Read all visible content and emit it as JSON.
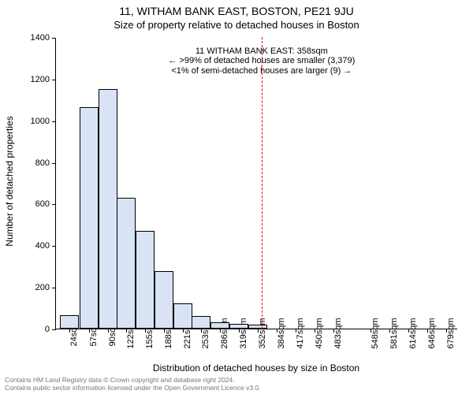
{
  "title_line1": "11, WITHAM BANK EAST, BOSTON, PE21 9JU",
  "title_line2": "Size of property relative to detached houses in Boston",
  "ylabel": "Number of detached properties",
  "xlabel": "Distribution of detached houses by size in Boston",
  "footer_line1": "Contains HM Land Registry data © Crown copyright and database right 2024.",
  "footer_line2": "Contains public sector information licensed under the Open Government Licence v3.0.",
  "chart": {
    "type": "histogram",
    "background_color": "#ffffff",
    "bar_fill": "#d9e3f5",
    "bar_border": "#000000",
    "axis_color": "#000000",
    "marker_color": "#ff0000",
    "marker_dash": "3,3",
    "xlim": [
      0,
      700
    ],
    "ylim": [
      0,
      1400
    ],
    "yticks": [
      0,
      200,
      400,
      600,
      800,
      1000,
      1200,
      1400
    ],
    "xtick_labels": [
      "24sqm",
      "57sqm",
      "90sqm",
      "122sqm",
      "155sqm",
      "188sqm",
      "221sqm",
      "253sqm",
      "286sqm",
      "319sqm",
      "352sqm",
      "384sqm",
      "417sqm",
      "450sqm",
      "483sqm",
      "548sqm",
      "581sqm",
      "614sqm",
      "646sqm",
      "679sqm"
    ],
    "xtick_positions": [
      24,
      57,
      90,
      122,
      155,
      188,
      221,
      253,
      286,
      319,
      352,
      384,
      417,
      450,
      483,
      548,
      581,
      614,
      646,
      679
    ],
    "bar_width_value": 33,
    "bars": [
      {
        "x": 24,
        "y": 65
      },
      {
        "x": 57,
        "y": 1065
      },
      {
        "x": 90,
        "y": 1150
      },
      {
        "x": 122,
        "y": 630
      },
      {
        "x": 155,
        "y": 470
      },
      {
        "x": 188,
        "y": 275
      },
      {
        "x": 221,
        "y": 120
      },
      {
        "x": 253,
        "y": 60
      },
      {
        "x": 286,
        "y": 30
      },
      {
        "x": 319,
        "y": 22
      },
      {
        "x": 352,
        "y": 18
      }
    ],
    "marker_x": 358,
    "annotation": {
      "x": 358,
      "y_top": 1360,
      "lines": [
        "11 WITHAM BANK EAST: 358sqm",
        "← >99% of detached houses are smaller (3,379)",
        "<1% of semi-detached houses are larger (9) →"
      ]
    },
    "title_fontsize": 14,
    "subtitle_fontsize": 13,
    "axis_label_fontsize": 12,
    "tick_fontsize": 11,
    "annotation_fontsize": 11,
    "footer_fontsize": 8.5,
    "footer_color": "#777777"
  }
}
